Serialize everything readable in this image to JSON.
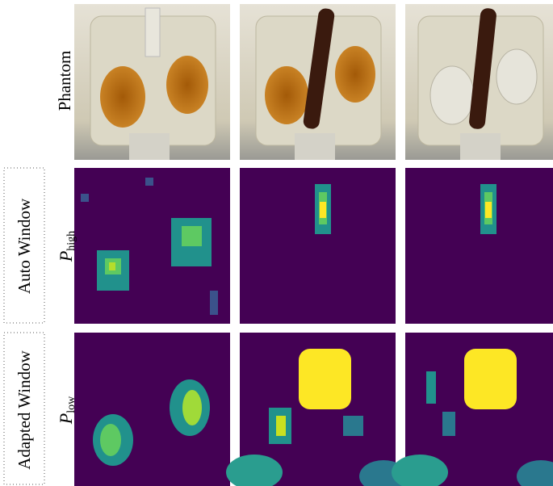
{
  "labels": {
    "phantom": "Phantom",
    "auto_window": "Auto Window",
    "p_high": {
      "symbol": "P",
      "subscript": "high"
    },
    "adapted_window": "Adapted Window",
    "p_low": {
      "symbol": "P",
      "subscript": "low"
    }
  }
}
